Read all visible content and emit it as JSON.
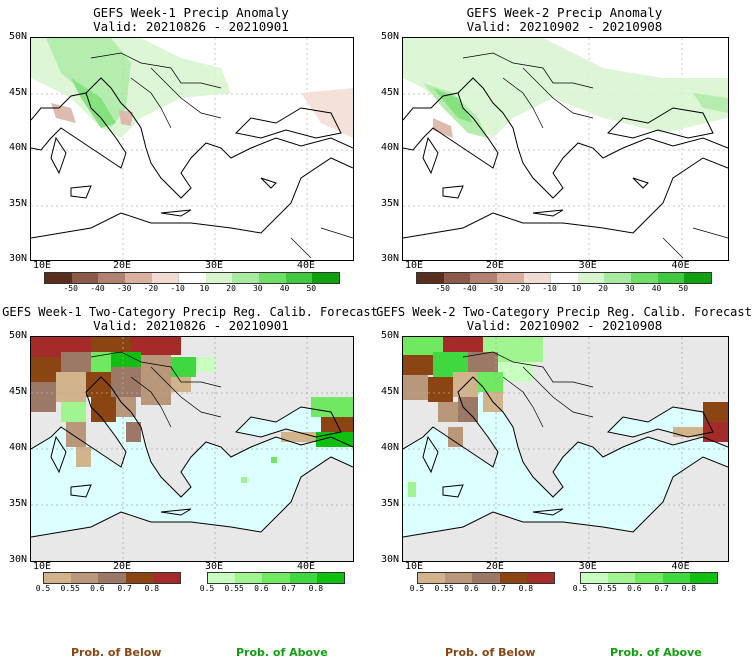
{
  "panels": [
    {
      "title": "GEFS Week-1 Precip Anomaly",
      "valid": "Valid: 20210826 - 20210901"
    },
    {
      "title": "GEFS Week-2 Precip Anomaly",
      "valid": "Valid: 20210902 - 20210908"
    },
    {
      "title": "GEFS Week-1 Two-Category Precip Reg. Calib. Forecast",
      "valid": "Valid: 20210826 - 20210901"
    },
    {
      "title": "GEFS Week-2 Two-Category Precip Reg. Calib. Forecast",
      "valid": "Valid: 20210902 - 20210908"
    }
  ],
  "lat_labels": [
    "50N",
    "45N",
    "40N",
    "35N",
    "30N"
  ],
  "lon_labels": [
    "10E",
    "20E",
    "30E",
    "40E"
  ],
  "anomaly_colorbar": {
    "ticks": [
      "-50",
      "-40",
      "-30",
      "-20",
      "-10",
      "10",
      "20",
      "30",
      "40",
      "50"
    ],
    "colors": [
      "#5a2e1e",
      "#8b5a48",
      "#b08070",
      "#d8b0a0",
      "#f2dcd2",
      "#ffffff",
      "#d8f5d0",
      "#a8eaa0",
      "#70dd68",
      "#40c840",
      "#10a010"
    ]
  },
  "below_colorbar": {
    "ticks": [
      "0.5",
      "0.55",
      "0.6",
      "0.7",
      "0.8"
    ],
    "colors": [
      "#d2b48c",
      "#b8977a",
      "#9c7866",
      "#8b4513",
      "#a52a2a"
    ],
    "caption": "Prob. of Below",
    "caption_color": "#8b4513"
  },
  "above_colorbar": {
    "ticks": [
      "0.5",
      "0.55",
      "0.6",
      "0.7",
      "0.8"
    ],
    "colors": [
      "#c8ffc0",
      "#a0f590",
      "#70e860",
      "#40d840",
      "#10c010"
    ],
    "caption": "Prob. of Above",
    "caption_color": "#10a010"
  }
}
